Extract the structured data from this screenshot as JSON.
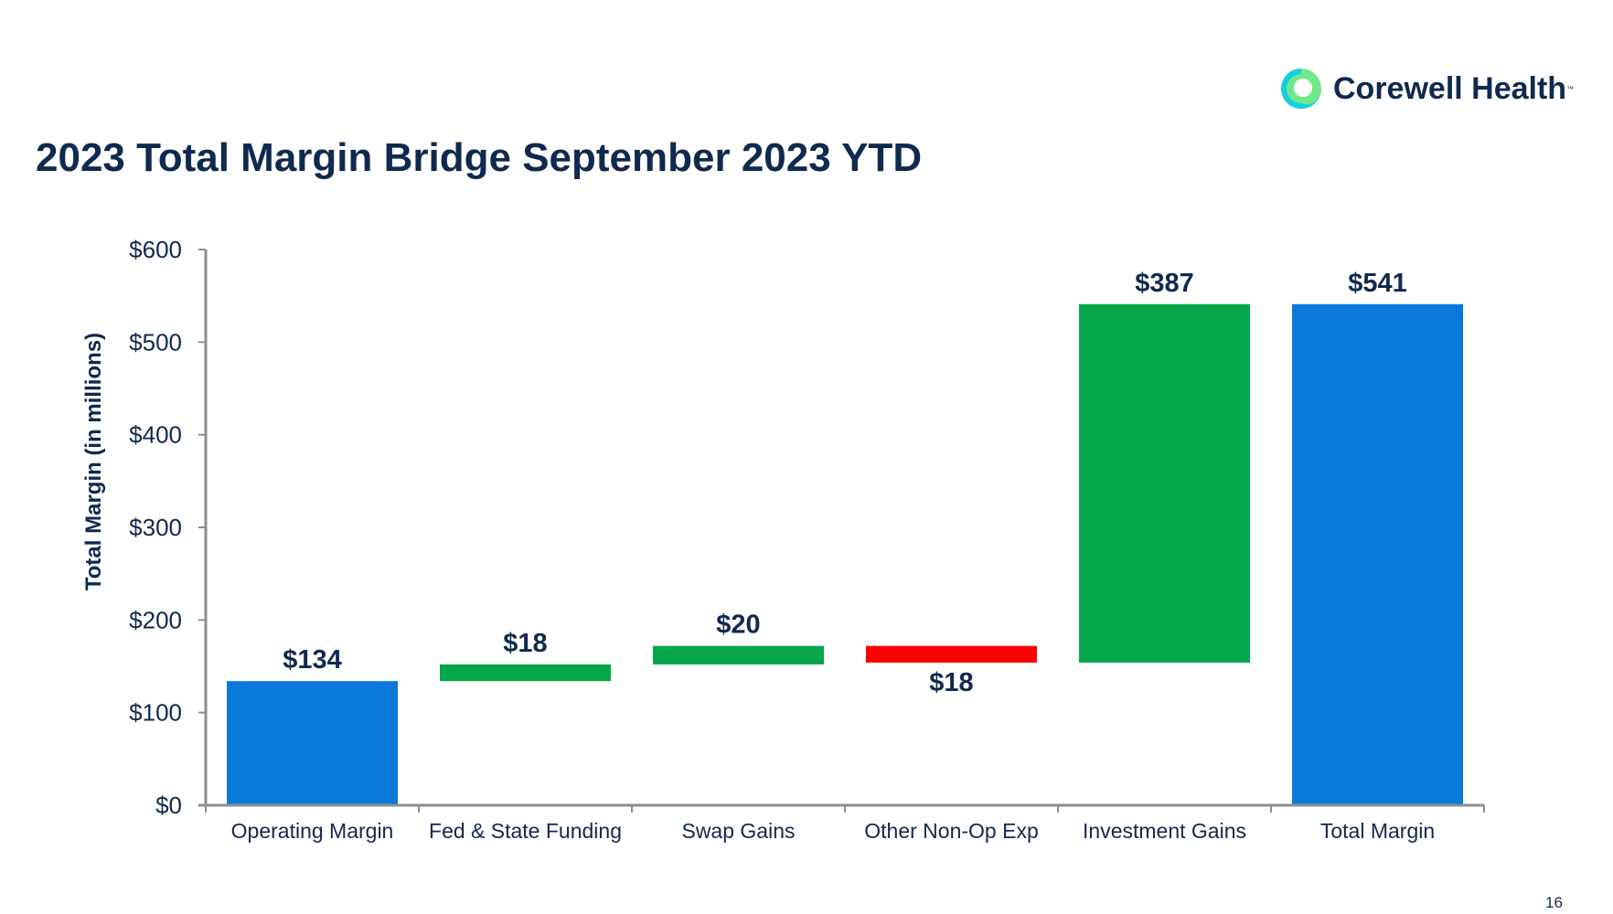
{
  "header": {
    "title": "2023 Total Margin Bridge September 2023 YTD",
    "logo_text": "Corewell Health",
    "logo_tm": "™"
  },
  "footer": {
    "page_number": "16"
  },
  "colors": {
    "total": "#0a79da",
    "increase": "#06a64a",
    "decrease": "#ff0000",
    "text": "#0f2a4e",
    "axis": "#8a8d96"
  },
  "chart_data": {
    "type": "waterfall",
    "title": "2023 Total Margin Bridge September 2023 YTD",
    "xlabel": "",
    "ylabel": "Total Margin (in millions)",
    "ylim": [
      0,
      600
    ],
    "yticks": [
      0,
      100,
      200,
      300,
      400,
      500,
      600
    ],
    "ytick_labels": [
      "$0",
      "$100",
      "$200",
      "$300",
      "$400",
      "$500",
      "$600"
    ],
    "grid": false,
    "categories": [
      "Operating Margin",
      "Fed & State Funding",
      "Swap Gains",
      "Other Non-Op Exp",
      "Investment Gains",
      "Total Margin"
    ],
    "bars": [
      {
        "kind": "total",
        "start": 0,
        "end": 134,
        "label": "$134"
      },
      {
        "kind": "increase",
        "start": 134,
        "end": 152,
        "label": "$18"
      },
      {
        "kind": "increase",
        "start": 152,
        "end": 172,
        "label": "$20"
      },
      {
        "kind": "decrease",
        "start": 172,
        "end": 154,
        "label": "$18"
      },
      {
        "kind": "increase",
        "start": 154,
        "end": 541,
        "label": "$387"
      },
      {
        "kind": "total",
        "start": 0,
        "end": 541,
        "label": "$541"
      }
    ]
  }
}
